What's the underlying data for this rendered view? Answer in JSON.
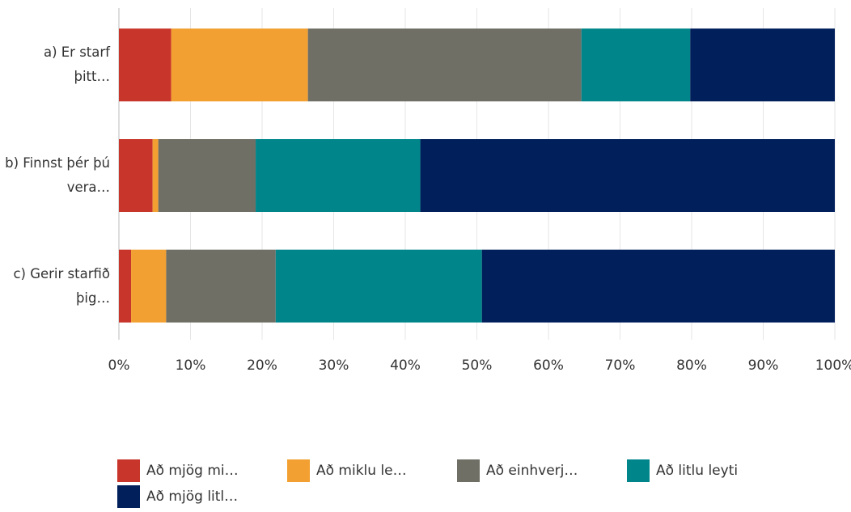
{
  "chart_data": {
    "type": "bar",
    "categories": [
      "a) Er starf þitt…",
      "b) Finnst þér þú vera…",
      "c) Gerir starfið þig…"
    ],
    "series": [
      {
        "name": "Að mjög mi…",
        "color": "#c8352b",
        "values": [
          7.3,
          4.7,
          1.7
        ]
      },
      {
        "name": "Að miklu le…",
        "color": "#f2a031",
        "values": [
          19.1,
          0.8,
          4.9
        ]
      },
      {
        "name": "Að einhverj…",
        "color": "#6f6f66",
        "values": [
          38.2,
          13.6,
          15.3
        ]
      },
      {
        "name": "Að litlu leyti",
        "color": "#00868a",
        "values": [
          15.2,
          23.0,
          28.8
        ]
      },
      {
        "name": "Að mjög litl…",
        "color": "#001f5b",
        "values": [
          20.2,
          57.9,
          49.3
        ]
      }
    ],
    "xlim": [
      0,
      100
    ],
    "xticks": [
      {
        "value": 0,
        "label": "0%"
      },
      {
        "value": 10,
        "label": "10%"
      },
      {
        "value": 20,
        "label": "20%"
      },
      {
        "value": 30,
        "label": "30%"
      },
      {
        "value": 40,
        "label": "40%"
      },
      {
        "value": 50,
        "label": "50%"
      },
      {
        "value": 60,
        "label": "60%"
      },
      {
        "value": 70,
        "label": "70%"
      },
      {
        "value": 80,
        "label": "80%"
      },
      {
        "value": 90,
        "label": "90%"
      },
      {
        "value": 100,
        "label": "100%"
      }
    ],
    "grid": true
  }
}
